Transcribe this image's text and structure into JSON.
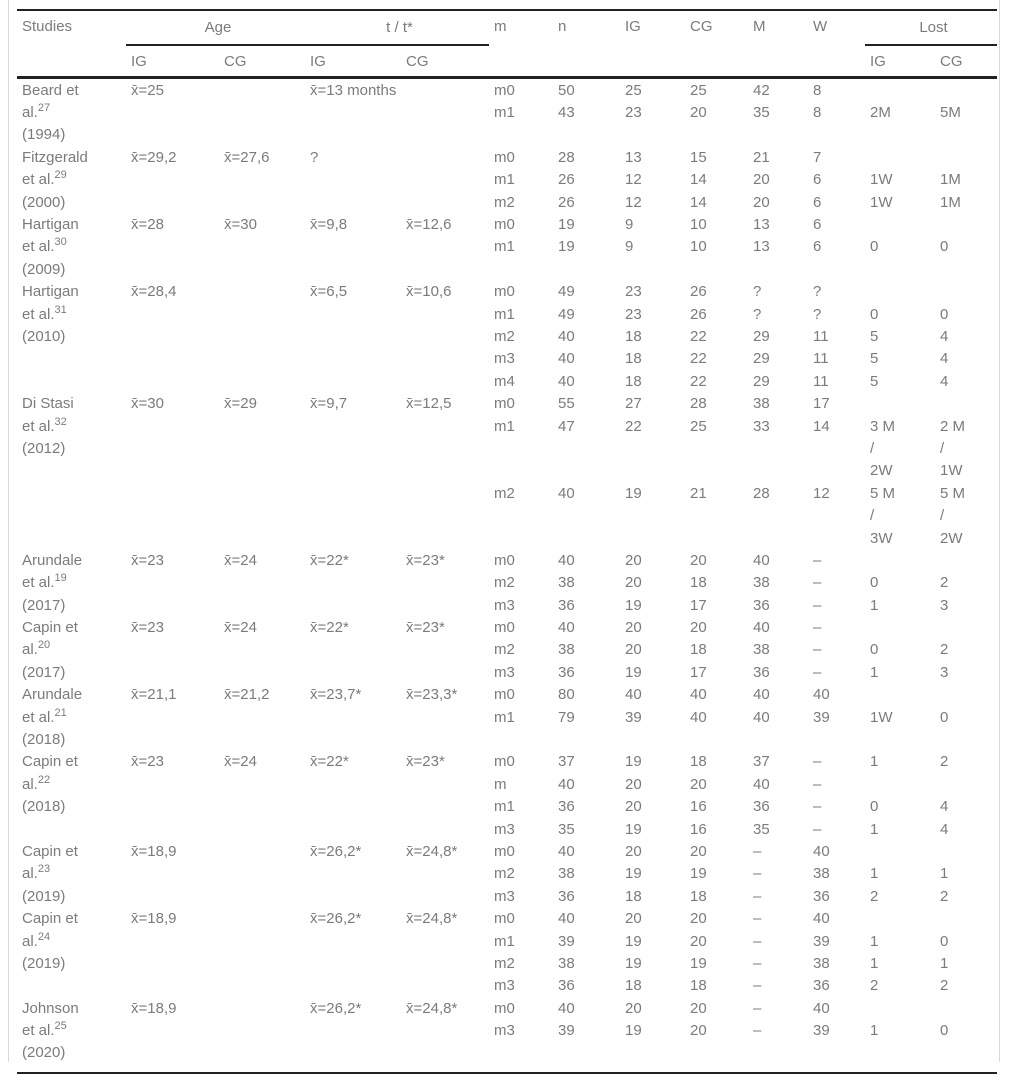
{
  "colors": {
    "text": "#7b7b7b",
    "rule": "#222222",
    "frame": "#d8d8d8",
    "background": "#ffffff"
  },
  "table": {
    "header": {
      "studies": "Studies",
      "age_group": "Age",
      "t_group": "t / t*",
      "m": "m",
      "n": "n",
      "ig": "IG",
      "cg": "CG",
      "male": "M",
      "female": "W",
      "lost_group": "Lost",
      "age_sub_ig": "IG",
      "age_sub_cg": "CG",
      "t_sub_ig": "IG",
      "t_sub_cg": "CG",
      "lost_sub_ig": "IG",
      "lost_sub_cg": "CG"
    },
    "column_keys": [
      "studies",
      "age_ig",
      "age_cg",
      "t_ig",
      "t_cg",
      "m",
      "n",
      "ig",
      "cg",
      "male",
      "female",
      "lost_ig",
      "lost_cg"
    ],
    "rows": [
      [
        "Beard et",
        "x̄=25",
        "",
        "x̄=13 months",
        "",
        "m0",
        "50",
        "25",
        "25",
        "42",
        "8",
        "",
        ""
      ],
      [
        "al.^27",
        "",
        "",
        "",
        "",
        "m1",
        "43",
        "23",
        "20",
        "35",
        "8",
        "2M",
        "5M"
      ],
      [
        "(1994)",
        "",
        "",
        "",
        "",
        "",
        "",
        "",
        "",
        "",
        "",
        "",
        ""
      ],
      [
        "Fitzgerald",
        "x̄=29,2",
        "x̄=27,6",
        "?",
        "",
        "m0",
        "28",
        "13",
        "15",
        "21",
        "7",
        "",
        ""
      ],
      [
        "et al.^29",
        "",
        "",
        "",
        "",
        "m1",
        "26",
        "12",
        "14",
        "20",
        "6",
        "1W",
        "1M"
      ],
      [
        "(2000)",
        "",
        "",
        "",
        "",
        "m2",
        "26",
        "12",
        "14",
        "20",
        "6",
        "1W",
        "1M"
      ],
      [
        "Hartigan",
        "x̄=28",
        "x̄=30",
        "x̄=9,8",
        "x̄=12,6",
        "m0",
        "19",
        "9",
        "10",
        "13",
        "6",
        "",
        ""
      ],
      [
        "et al.^30",
        "",
        "",
        "",
        "",
        "m1",
        "19",
        "9",
        "10",
        "13",
        "6",
        "0",
        "0"
      ],
      [
        "(2009)",
        "",
        "",
        "",
        "",
        "",
        "",
        "",
        "",
        "",
        "",
        "",
        ""
      ],
      [
        "Hartigan",
        "x̄=28,4",
        "",
        "x̄=6,5",
        "x̄=10,6",
        "m0",
        "49",
        "23",
        "26",
        "?",
        "?",
        "",
        ""
      ],
      [
        "et al.^31",
        "",
        "",
        "",
        "",
        "m1",
        "49",
        "23",
        "26",
        "?",
        "?",
        "0",
        "0"
      ],
      [
        "(2010)",
        "",
        "",
        "",
        "",
        "m2",
        "40",
        "18",
        "22",
        "29",
        "11",
        "5",
        "4"
      ],
      [
        "",
        "",
        "",
        "",
        "",
        "m3",
        "40",
        "18",
        "22",
        "29",
        "11",
        "5",
        "4"
      ],
      [
        "",
        "",
        "",
        "",
        "",
        "m4",
        "40",
        "18",
        "22",
        "29",
        "11",
        "5",
        "4"
      ],
      [
        "Di Stasi",
        "x̄=30",
        "x̄=29",
        "x̄=9,7",
        "x̄=12,5",
        "m0",
        "55",
        "27",
        "28",
        "38",
        "17",
        "",
        ""
      ],
      [
        "et al.^32",
        "",
        "",
        "",
        "",
        "m1",
        "47",
        "22",
        "25",
        "33",
        "14",
        "3 M",
        "2 M"
      ],
      [
        "(2012)",
        "",
        "",
        "",
        "",
        "",
        "",
        "",
        "",
        "",
        "",
        "/",
        "/"
      ],
      [
        "",
        "",
        "",
        "",
        "",
        "",
        "",
        "",
        "",
        "",
        "",
        "2W",
        "1W"
      ],
      [
        "",
        "",
        "",
        "",
        "",
        "m2",
        "40",
        "19",
        "21",
        "28",
        "12",
        "5 M",
        "5 M"
      ],
      [
        "",
        "",
        "",
        "",
        "",
        "",
        "",
        "",
        "",
        "",
        "",
        "/",
        "/"
      ],
      [
        "",
        "",
        "",
        "",
        "",
        "",
        "",
        "",
        "",
        "",
        "",
        "3W",
        "2W"
      ],
      [
        "Arundale",
        "x̄=23",
        "x̄=24",
        "x̄=22*",
        "x̄=23*",
        "m0",
        "40",
        "20",
        "20",
        "40",
        "–",
        "",
        ""
      ],
      [
        "et al.^19",
        "",
        "",
        "",
        "",
        "m2",
        "38",
        "20",
        "18",
        "38",
        "–",
        "0",
        "2"
      ],
      [
        "(2017)",
        "",
        "",
        "",
        "",
        "m3",
        "36",
        "19",
        "17",
        "36",
        "–",
        "1",
        "3"
      ],
      [
        "Capin et",
        "x̄=23",
        "x̄=24",
        "x̄=22*",
        "x̄=23*",
        "m0",
        "40",
        "20",
        "20",
        "40",
        "–",
        "",
        ""
      ],
      [
        "al.^20",
        "",
        "",
        "",
        "",
        "m2",
        "38",
        "20",
        "18",
        "38",
        "–",
        "0",
        "2"
      ],
      [
        "(2017)",
        "",
        "",
        "",
        "",
        "m3",
        "36",
        "19",
        "17",
        "36",
        "–",
        "1",
        "3"
      ],
      [
        "Arundale",
        "x̄=21,1",
        "x̄=21,2",
        "x̄=23,7*",
        "x̄=23,3*",
        "m0",
        "80",
        "40",
        "40",
        "40",
        "40",
        "",
        ""
      ],
      [
        "et al.^21",
        "",
        "",
        "",
        "",
        "m1",
        "79",
        "39",
        "40",
        "40",
        "39",
        "1W",
        "0"
      ],
      [
        "(2018)",
        "",
        "",
        "",
        "",
        "",
        "",
        "",
        "",
        "",
        "",
        "",
        ""
      ],
      [
        "Capin et",
        "x̄=23",
        "x̄=24",
        "x̄=22*",
        "x̄=23*",
        "m0",
        "37",
        "19",
        "18",
        "37",
        "–",
        "1",
        "2"
      ],
      [
        "al.^22",
        "",
        "",
        "",
        "",
        "m",
        "40",
        "20",
        "20",
        "40",
        "–",
        "",
        ""
      ],
      [
        "(2018)",
        "",
        "",
        "",
        "",
        "m1",
        "36",
        "20",
        "16",
        "36",
        "–",
        "0",
        "4"
      ],
      [
        "",
        "",
        "",
        "",
        "",
        "m3",
        "35",
        "19",
        "16",
        "35",
        "–",
        "1",
        "4"
      ],
      [
        "Capin et",
        "x̄=18,9",
        "",
        "x̄=26,2*",
        "x̄=24,8*",
        "m0",
        "40",
        "20",
        "20",
        "–",
        "40",
        "",
        ""
      ],
      [
        "al.^23",
        "",
        "",
        "",
        "",
        "m2",
        "38",
        "19",
        "19",
        "–",
        "38",
        "1",
        "1"
      ],
      [
        "(2019)",
        "",
        "",
        "",
        "",
        "m3",
        "36",
        "18",
        "18",
        "–",
        "36",
        "2",
        "2"
      ],
      [
        "Capin et",
        "x̄=18,9",
        "",
        "x̄=26,2*",
        "x̄=24,8*",
        "m0",
        "40",
        "20",
        "20",
        "–",
        "40",
        "",
        ""
      ],
      [
        "al.^24",
        "",
        "",
        "",
        "",
        "m1",
        "39",
        "19",
        "20",
        "–",
        "39",
        "1",
        "0"
      ],
      [
        "(2019)",
        "",
        "",
        "",
        "",
        "m2",
        "38",
        "19",
        "19",
        "–",
        "38",
        "1",
        "1"
      ],
      [
        "",
        "",
        "",
        "",
        "",
        "m3",
        "36",
        "18",
        "18",
        "–",
        "36",
        "2",
        "2"
      ],
      [
        "Johnson",
        "x̄=18,9",
        "",
        "x̄=26,2*",
        "x̄=24,8*",
        "m0",
        "40",
        "20",
        "20",
        "–",
        "40",
        "",
        ""
      ],
      [
        "et al.^25",
        "",
        "",
        "",
        "",
        "m3",
        "39",
        "19",
        "20",
        "–",
        "39",
        "1",
        "0"
      ],
      [
        "(2020)",
        "",
        "",
        "",
        "",
        "",
        "",
        "",
        "",
        "",
        "",
        "",
        ""
      ]
    ]
  }
}
